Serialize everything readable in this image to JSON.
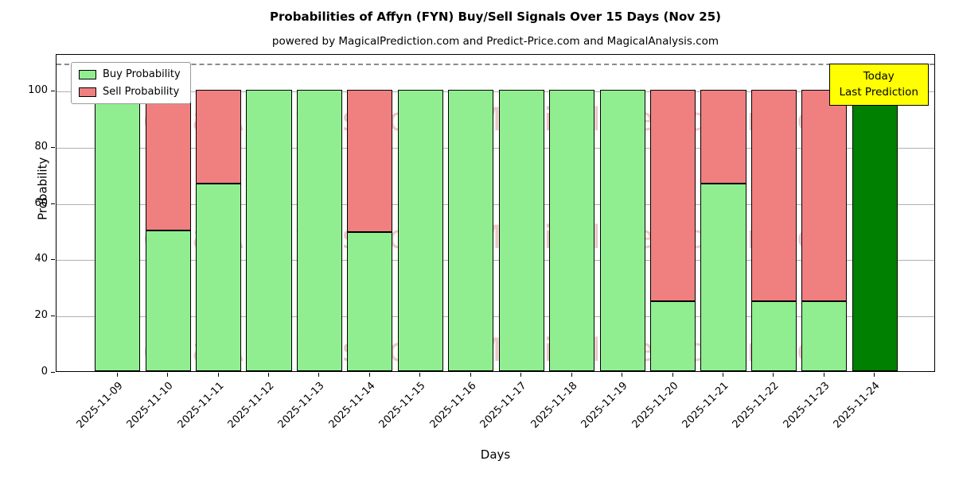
{
  "chart_data": {
    "type": "bar",
    "title": "Probabilities of Affyn (FYN) Buy/Sell Signals Over 15 Days (Nov 25)",
    "subtitle": "powered by MagicalPrediction.com and Predict-Price.com and MagicalAnalysis.com",
    "xlabel": "Days",
    "ylabel": "Probability",
    "categories": [
      "2025-11-09",
      "2025-11-10",
      "2025-11-11",
      "2025-11-12",
      "2025-11-13",
      "2025-11-14",
      "2025-11-15",
      "2025-11-16",
      "2025-11-17",
      "2025-11-18",
      "2025-11-19",
      "2025-11-20",
      "2025-11-21",
      "2025-11-22",
      "2025-11-23",
      "2025-11-24"
    ],
    "series": [
      {
        "name": "Buy Probability",
        "values": [
          100,
          50,
          66.7,
          100,
          100,
          49.5,
          100,
          100,
          100,
          100,
          100,
          25,
          66.7,
          25,
          25,
          100
        ]
      },
      {
        "name": "Sell Probability",
        "values": [
          0,
          50,
          33.3,
          0,
          0,
          50.5,
          0,
          0,
          0,
          0,
          0,
          75,
          33.3,
          75,
          75,
          0
        ]
      }
    ],
    "today_index": 15,
    "ylim": [
      0,
      113
    ],
    "yticks": [
      0,
      20,
      40,
      60,
      80,
      100
    ],
    "dashed_line_y": 110,
    "grid": "horizontal",
    "legend_position": "upper-left",
    "legend": {
      "buy_label": "Buy Probability",
      "sell_label": "Sell Probability"
    },
    "annotation": {
      "line1": "Today",
      "line2": "Last Prediction"
    },
    "watermarks": {
      "left": "MagicalAnalysis.com",
      "right": "MagicalPrediction.com"
    },
    "colors": {
      "buy": "#90EE90",
      "sell": "#F08080",
      "today": "#008000",
      "annotation_bg": "#FFFF00",
      "watermark": "rgba(205,110,110,0.38)",
      "grid": "#b0b0b0"
    }
  }
}
